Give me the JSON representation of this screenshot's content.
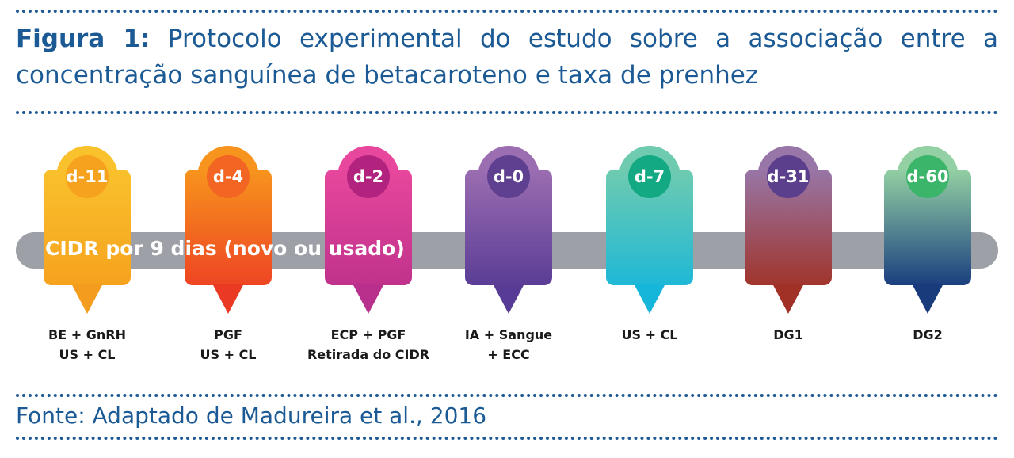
{
  "caption": {
    "label": "Figura 1:",
    "text": "Protocolo experimental do estudo sobre a associação entre a concentração sanguínea de betacaroteno e taxa de prenhez"
  },
  "band_label": "CIDR por 9 dias (novo ou usado)",
  "timeline": [
    {
      "day": "d-11",
      "lines": [
        "BE + GnRH",
        "US + CL"
      ],
      "colors": {
        "top": "#f9c12c",
        "bottom": "#f6a21e",
        "tip": "#f49c1d",
        "circle": "#f6a21e"
      }
    },
    {
      "day": "d-4",
      "lines": [
        "PGF",
        "US + CL"
      ],
      "colors": {
        "top": "#f7941d",
        "bottom": "#ee4523",
        "tip": "#ea3a24",
        "circle": "#f26522"
      }
    },
    {
      "day": "d-2",
      "lines": [
        "ECP + PGF",
        "Retirada do CIDR"
      ],
      "colors": {
        "top": "#e7479c",
        "bottom": "#c0328c",
        "tip": "#b8308c",
        "circle": "#b2237f"
      }
    },
    {
      "day": "d-0",
      "lines": [
        "IA + Sangue",
        "+ ECC"
      ],
      "colors": {
        "top": "#9b6db1",
        "bottom": "#5b3d96",
        "tip": "#583b94",
        "circle": "#5e3f90"
      }
    },
    {
      "day": "d-7",
      "lines": [
        "US + CL"
      ],
      "colors": {
        "top": "#6fcbb0",
        "bottom": "#1fb8d6",
        "tip": "#16b6db",
        "circle": "#13a982"
      }
    },
    {
      "day": "d-31",
      "lines": [
        "DG1"
      ],
      "colors": {
        "top": "#9876a7",
        "bottom": "#a0352c",
        "tip": "#a13127",
        "circle": "#5b3f8c"
      }
    },
    {
      "day": "d-60",
      "lines": [
        "DG2"
      ],
      "colors": {
        "top": "#93d0a3",
        "bottom": "#1b3f7f",
        "tip": "#193b7c",
        "circle": "#3bb56a"
      }
    }
  ],
  "source": "Fonte: Adaptado de Madureira et al., 2016"
}
